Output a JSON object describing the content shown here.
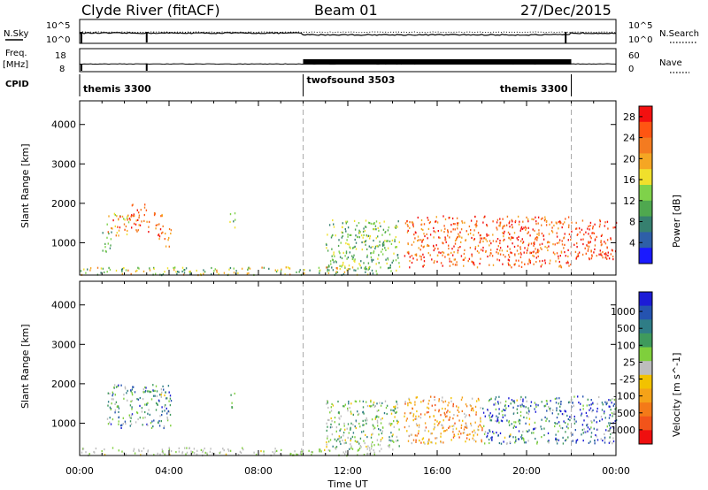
{
  "header": {
    "station": "Clyde River (fitACF)",
    "beam": "Beam 01",
    "date": "27/Dec/2015"
  },
  "strips": {
    "nsky": {
      "label": "N.Sky",
      "left_ticks": [
        "10^5",
        "10^0"
      ],
      "right_ticks": [
        "10^5",
        "10^0"
      ],
      "right_label": "N.Search"
    },
    "freq": {
      "label_1": "Freq.",
      "label_2": "[MHz]",
      "left_ticks": [
        "18",
        "8"
      ],
      "right_ticks": [
        "60",
        "0"
      ],
      "right_label": "Nave"
    },
    "cpid": {
      "label": "CPID",
      "segments": [
        {
          "name": "themis 3300",
          "start_hour": 0,
          "end_hour": 10
        },
        {
          "name": "twofsound 3503",
          "start_hour": 10,
          "end_hour": 22
        },
        {
          "name": "themis 3300",
          "start_hour": 22,
          "end_hour": 24
        }
      ]
    }
  },
  "axes": {
    "xlabel": "Time UT",
    "ylabel": "Slant Range [km]",
    "x_ticks": [
      "00:00",
      "04:00",
      "08:00",
      "12:00",
      "16:00",
      "20:00",
      "00:00"
    ],
    "y_ticks": [
      "1000",
      "2000",
      "3000",
      "4000"
    ]
  },
  "colorbars": {
    "power": {
      "label": "Power [dB]",
      "ticks": [
        "4",
        "8",
        "12",
        "16",
        "20",
        "24",
        "28"
      ],
      "colors": [
        "#1a1aff",
        "#2e5fa8",
        "#36806f",
        "#4fa84f",
        "#7fd24a",
        "#f0e02c",
        "#f5a623",
        "#f47b20",
        "#ff5512",
        "#f31010"
      ]
    },
    "velocity": {
      "label": "Velocity [m s^-1]",
      "ticks": [
        "1000",
        "500",
        "100",
        "25",
        "-25",
        "-100",
        "-500",
        "-1000"
      ],
      "colors": [
        "#1c1cd6",
        "#2553b0",
        "#2f7d86",
        "#3f9a5c",
        "#7fcf3c",
        "#bdbdbd",
        "#f2c200",
        "#f5a218",
        "#f47a18",
        "#f2541a",
        "#ef0f0f"
      ]
    }
  },
  "chart_data": [
    {
      "type": "heatmap",
      "title": "Power [dB]",
      "xlabel": "Time UT",
      "ylabel": "Slant Range [km]",
      "xlim_hours": [
        0,
        24
      ],
      "ylim_km": [
        180,
        4600
      ],
      "colorbar_range": [
        0,
        30
      ],
      "scatter_regions": [
        {
          "t0": 1.2,
          "t1": 2.2,
          "r0": 1200,
          "r1": 1800,
          "value_mean": 20,
          "value_spread": 8
        },
        {
          "t0": 2.2,
          "t1": 3.1,
          "r0": 1300,
          "r1": 2000,
          "value_mean": 25,
          "value_spread": 6
        },
        {
          "t0": 3.3,
          "t1": 3.8,
          "r0": 1100,
          "r1": 1800,
          "value_mean": 24,
          "value_spread": 6
        },
        {
          "t0": 3.8,
          "t1": 4.1,
          "r0": 900,
          "r1": 1400,
          "value_mean": 22,
          "value_spread": 6
        },
        {
          "t0": 1.0,
          "t1": 1.4,
          "r0": 700,
          "r1": 1300,
          "value_mean": 10,
          "value_spread": 5
        },
        {
          "t0": 6.7,
          "t1": 6.95,
          "r0": 1400,
          "r1": 1800,
          "value_mean": 12,
          "value_spread": 4
        },
        {
          "t0": 0.0,
          "t1": 13.5,
          "r0": 200,
          "r1": 400,
          "value_mean": 14,
          "value_spread": 8
        },
        {
          "t0": 11.0,
          "t1": 14.3,
          "r0": 300,
          "r1": 1600,
          "value_mean": 12,
          "value_spread": 6
        },
        {
          "t0": 14.5,
          "t1": 22.0,
          "r0": 400,
          "r1": 1700,
          "value_mean": 24,
          "value_spread": 6
        },
        {
          "t0": 22.0,
          "t1": 24.0,
          "r0": 600,
          "r1": 1600,
          "value_mean": 26,
          "value_spread": 4
        }
      ]
    },
    {
      "type": "heatmap",
      "title": "Velocity [m s^-1]",
      "xlabel": "Time UT",
      "ylabel": "Slant Range [km]",
      "xlim_hours": [
        0,
        24
      ],
      "ylim_km": [
        180,
        4600
      ],
      "colorbar_range": [
        -1000,
        1000
      ],
      "scatter_regions": [
        {
          "t0": 1.2,
          "t1": 4.1,
          "r0": 900,
          "r1": 2000,
          "value_mean": 400,
          "value_spread": 500
        },
        {
          "t0": 6.7,
          "t1": 6.95,
          "r0": 1400,
          "r1": 1800,
          "value_mean": 300,
          "value_spread": 200
        },
        {
          "t0": 0.0,
          "t1": 13.5,
          "r0": 200,
          "r1": 400,
          "value_mean": 50,
          "value_spread": 150
        },
        {
          "t0": 11.0,
          "t1": 14.3,
          "r0": 300,
          "r1": 1600,
          "value_mean": 200,
          "value_spread": 400
        },
        {
          "t0": 14.5,
          "t1": 18.0,
          "r0": 500,
          "r1": 1700,
          "value_mean": -350,
          "value_spread": 400
        },
        {
          "t0": 18.0,
          "t1": 24.0,
          "r0": 500,
          "r1": 1700,
          "value_mean": 500,
          "value_spread": 600
        }
      ]
    }
  ]
}
